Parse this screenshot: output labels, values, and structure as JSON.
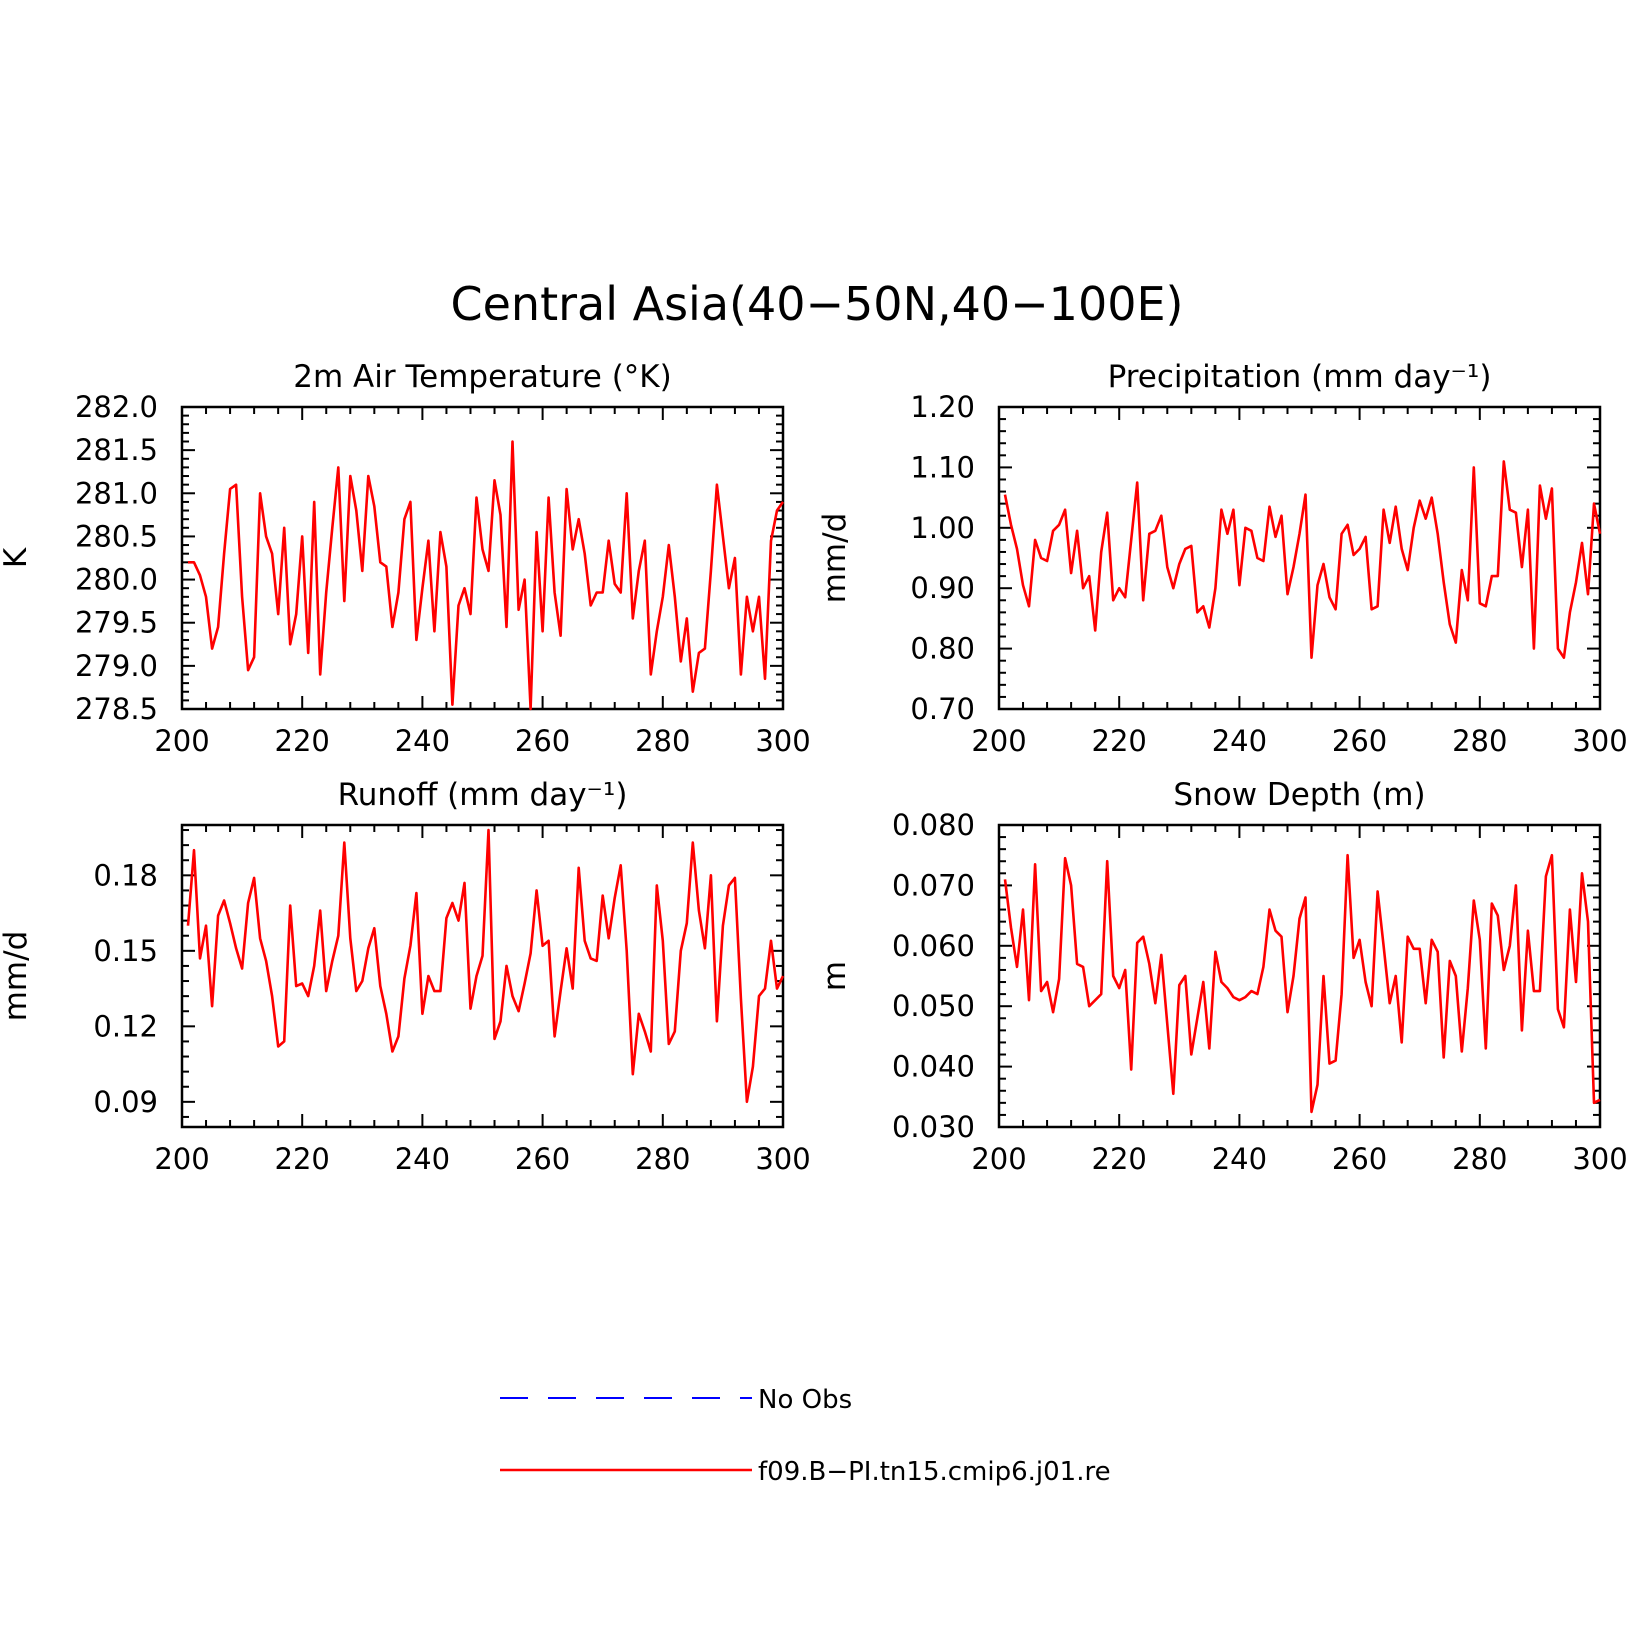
{
  "figure": {
    "title": "Central Asia(40−50N,40−100E)"
  },
  "legend": {
    "entries": [
      {
        "label": "No Obs",
        "color": "#0000ff",
        "style": "dashed"
      },
      {
        "label": "f09.B−PI.tn15.cmip6.j01.re",
        "color": "#ff0000",
        "style": "solid"
      }
    ]
  },
  "chart_data": [
    {
      "type": "line",
      "title": "2m Air Temperature (°K)",
      "ylabel": "K",
      "xlim": [
        200,
        300
      ],
      "ylim": [
        278.5,
        282.0
      ],
      "xticks": [
        "200",
        "220",
        "240",
        "260",
        "280",
        "300"
      ],
      "yticks": [
        "278.5",
        "279.0",
        "279.5",
        "280.0",
        "280.5",
        "281.0",
        "281.5",
        "282.0"
      ],
      "grid": false,
      "series": [
        {
          "name": "f09.B−PI.tn15.cmip6.j01.re",
          "color": "#ff0000",
          "x0": 201,
          "values": [
            280.2,
            280.2,
            280.05,
            279.8,
            279.2,
            279.45,
            280.3,
            281.05,
            281.1,
            279.8,
            278.95,
            279.1,
            281.0,
            280.5,
            280.3,
            279.6,
            280.6,
            279.25,
            279.6,
            280.5,
            279.15,
            280.9,
            278.9,
            279.85,
            280.6,
            281.3,
            279.75,
            281.2,
            280.8,
            280.1,
            281.2,
            280.85,
            280.2,
            280.15,
            279.45,
            279.85,
            280.7,
            280.9,
            279.3,
            279.9,
            280.45,
            279.4,
            280.55,
            280.15,
            278.55,
            279.7,
            279.9,
            279.6,
            280.95,
            280.35,
            280.1,
            281.15,
            280.75,
            279.45,
            281.6,
            279.65,
            280.0,
            278.5,
            280.55,
            279.4,
            280.95,
            279.85,
            279.35,
            281.05,
            280.35,
            280.7,
            280.3,
            279.7,
            279.85,
            279.85,
            280.45,
            279.95,
            279.85,
            281.0,
            279.55,
            280.1,
            280.45,
            278.9,
            279.4,
            279.8,
            280.4,
            279.8,
            279.05,
            279.55,
            278.7,
            279.15,
            279.2,
            280.1,
            281.1,
            280.5,
            279.9,
            280.25,
            278.9,
            279.8,
            279.4,
            279.8,
            278.85,
            280.45,
            280.8,
            280.9
          ]
        }
      ]
    },
    {
      "type": "line",
      "title": "Precipitation (mm day⁻¹)",
      "ylabel": "mm/d",
      "xlim": [
        200,
        300
      ],
      "ylim": [
        0.7,
        1.2
      ],
      "xticks": [
        "200",
        "220",
        "240",
        "260",
        "280",
        "300"
      ],
      "yticks": [
        "0.70",
        "0.80",
        "0.90",
        "1.00",
        "1.10",
        "1.20"
      ],
      "grid": false,
      "series": [
        {
          "name": "f09.B−PI.tn15.cmip6.j01.re",
          "color": "#ff0000",
          "x0": 201,
          "values": [
            1.055,
            1.005,
            0.965,
            0.905,
            0.87,
            0.98,
            0.95,
            0.945,
            0.995,
            1.005,
            1.03,
            0.925,
            0.995,
            0.9,
            0.92,
            0.83,
            0.96,
            1.025,
            0.88,
            0.9,
            0.885,
            0.98,
            1.075,
            0.88,
            0.99,
            0.995,
            1.02,
            0.935,
            0.9,
            0.94,
            0.965,
            0.97,
            0.86,
            0.87,
            0.835,
            0.9,
            1.03,
            0.99,
            1.03,
            0.905,
            1.0,
            0.995,
            0.95,
            0.945,
            1.035,
            0.985,
            1.02,
            0.89,
            0.935,
            0.99,
            1.055,
            0.785,
            0.905,
            0.94,
            0.885,
            0.865,
            0.99,
            1.005,
            0.955,
            0.965,
            0.985,
            0.865,
            0.87,
            1.03,
            0.975,
            1.035,
            0.965,
            0.93,
            1.0,
            1.045,
            1.015,
            1.05,
            0.99,
            0.91,
            0.84,
            0.81,
            0.93,
            0.88,
            1.1,
            0.875,
            0.87,
            0.92,
            0.92,
            1.11,
            1.03,
            1.025,
            0.935,
            1.03,
            0.8,
            1.07,
            1.015,
            1.065,
            0.8,
            0.785,
            0.86,
            0.91,
            0.975,
            0.89,
            1.04,
            0.99
          ]
        }
      ]
    },
    {
      "type": "line",
      "title": "Runoff (mm day⁻¹)",
      "ylabel": "mm/d",
      "xlim": [
        200,
        300
      ],
      "ylim": [
        0.08,
        0.2
      ],
      "xticks": [
        "200",
        "220",
        "240",
        "260",
        "280",
        "300"
      ],
      "yticks": [
        "0.09",
        "0.12",
        "0.15",
        "0.18"
      ],
      "grid": false,
      "series": [
        {
          "name": "f09.B−PI.tn15.cmip6.j01.re",
          "color": "#ff0000",
          "x0": 201,
          "values": [
            0.16,
            0.19,
            0.147,
            0.16,
            0.128,
            0.164,
            0.17,
            0.161,
            0.151,
            0.143,
            0.169,
            0.179,
            0.155,
            0.146,
            0.132,
            0.112,
            0.114,
            0.168,
            0.136,
            0.137,
            0.132,
            0.144,
            0.166,
            0.134,
            0.146,
            0.156,
            0.193,
            0.155,
            0.134,
            0.138,
            0.151,
            0.159,
            0.136,
            0.125,
            0.11,
            0.116,
            0.139,
            0.152,
            0.173,
            0.125,
            0.14,
            0.134,
            0.134,
            0.163,
            0.169,
            0.162,
            0.177,
            0.127,
            0.14,
            0.148,
            0.198,
            0.115,
            0.122,
            0.144,
            0.132,
            0.126,
            0.137,
            0.149,
            0.174,
            0.152,
            0.154,
            0.116,
            0.134,
            0.151,
            0.135,
            0.183,
            0.154,
            0.147,
            0.146,
            0.172,
            0.155,
            0.171,
            0.184,
            0.15,
            0.101,
            0.125,
            0.118,
            0.11,
            0.176,
            0.154,
            0.113,
            0.118,
            0.15,
            0.161,
            0.193,
            0.166,
            0.151,
            0.18,
            0.122,
            0.16,
            0.176,
            0.179,
            0.131,
            0.09,
            0.104,
            0.132,
            0.135,
            0.154,
            0.135,
            0.14
          ]
        }
      ]
    },
    {
      "type": "line",
      "title": "Snow Depth (m)",
      "ylabel": "m",
      "xlim": [
        200,
        300
      ],
      "ylim": [
        0.03,
        0.08
      ],
      "xticks": [
        "200",
        "220",
        "240",
        "260",
        "280",
        "300"
      ],
      "yticks": [
        "0.030",
        "0.040",
        "0.050",
        "0.060",
        "0.070",
        "0.080"
      ],
      "grid": false,
      "series": [
        {
          "name": "f09.B−PI.tn15.cmip6.j01.re",
          "color": "#ff0000",
          "x0": 201,
          "values": [
            0.071,
            0.063,
            0.0565,
            0.066,
            0.051,
            0.0735,
            0.0525,
            0.054,
            0.049,
            0.0545,
            0.0745,
            0.07,
            0.057,
            0.0565,
            0.05,
            0.051,
            0.052,
            0.074,
            0.055,
            0.053,
            0.056,
            0.0395,
            0.0605,
            0.0615,
            0.057,
            0.0505,
            0.0585,
            0.047,
            0.0355,
            0.0535,
            0.055,
            0.042,
            0.048,
            0.054,
            0.043,
            0.059,
            0.054,
            0.053,
            0.0515,
            0.051,
            0.0515,
            0.0525,
            0.052,
            0.0565,
            0.066,
            0.0625,
            0.0615,
            0.049,
            0.055,
            0.0645,
            0.068,
            0.0325,
            0.037,
            0.055,
            0.0405,
            0.041,
            0.052,
            0.075,
            0.058,
            0.061,
            0.054,
            0.05,
            0.069,
            0.06,
            0.0505,
            0.055,
            0.044,
            0.0615,
            0.0595,
            0.0595,
            0.0505,
            0.061,
            0.059,
            0.0415,
            0.0575,
            0.055,
            0.0425,
            0.053,
            0.0675,
            0.061,
            0.043,
            0.067,
            0.065,
            0.056,
            0.06,
            0.07,
            0.046,
            0.0625,
            0.0525,
            0.0525,
            0.0715,
            0.075,
            0.0495,
            0.0465,
            0.066,
            0.054,
            0.072,
            0.064,
            0.034,
            0.0345
          ]
        }
      ]
    }
  ]
}
